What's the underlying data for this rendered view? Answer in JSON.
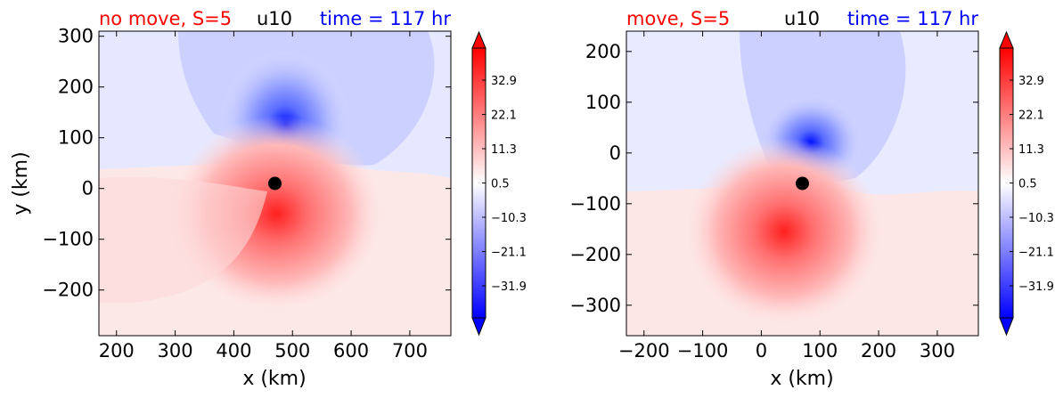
{
  "chart_data": [
    {
      "type": "heatmap",
      "title_left": "no move, S=5",
      "title_center": "u10",
      "title_right": "time = 117 hr",
      "title_left_color": "#ff0000",
      "title_center_color": "#000000",
      "title_right_color": "#0000ff",
      "xlabel": "x (km)",
      "ylabel": "y (km)",
      "xlim": [
        170,
        770
      ],
      "ylim": [
        -290,
        310
      ],
      "xticks": [
        200,
        300,
        400,
        500,
        600,
        700
      ],
      "yticks": [
        300,
        200,
        100,
        0,
        -100,
        -200
      ],
      "xtick_labels": [
        "200",
        "300",
        "400",
        "500",
        "600",
        "700"
      ],
      "ytick_labels": [
        "300",
        "200",
        "100",
        "0",
        "−100",
        "−200"
      ],
      "center_marker": {
        "x": 470,
        "y": 10
      },
      "colorbar": {
        "range": [
          -42,
          43
        ],
        "extend": "both",
        "ticks": [
          32.9,
          22.1,
          11.3,
          0.5,
          -10.3,
          -21.1,
          -31.9
        ],
        "tick_labels": [
          "32.9",
          "22.1",
          "11.3",
          "0.5",
          "−10.3",
          "−21.1",
          "−31.9"
        ],
        "cmap": "bwr"
      }
    },
    {
      "type": "heatmap",
      "title_left": "move, S=5",
      "title_center": "u10",
      "title_right": "time = 117 hr",
      "title_left_color": "#ff0000",
      "title_center_color": "#000000",
      "title_right_color": "#0000ff",
      "xlabel": "x (km)",
      "ylabel": "",
      "xlim": [
        -230,
        370
      ],
      "ylim": [
        -360,
        240
      ],
      "xticks": [
        -200,
        -100,
        0,
        100,
        200,
        300
      ],
      "yticks": [
        200,
        100,
        0,
        -100,
        -200,
        -300
      ],
      "xtick_labels": [
        "−200",
        "−100",
        "0",
        "100",
        "200",
        "300"
      ],
      "ytick_labels": [
        "200",
        "100",
        "0",
        "−100",
        "−200",
        "−300"
      ],
      "center_marker": {
        "x": 70,
        "y": -60
      },
      "colorbar": {
        "range": [
          -42,
          43
        ],
        "extend": "both",
        "ticks": [
          32.9,
          22.1,
          11.3,
          0.5,
          -10.3,
          -21.1,
          -31.9
        ],
        "tick_labels": [
          "32.9",
          "22.1",
          "11.3",
          "0.5",
          "−10.3",
          "−21.1",
          "−31.9"
        ],
        "cmap": "bwr"
      }
    }
  ]
}
